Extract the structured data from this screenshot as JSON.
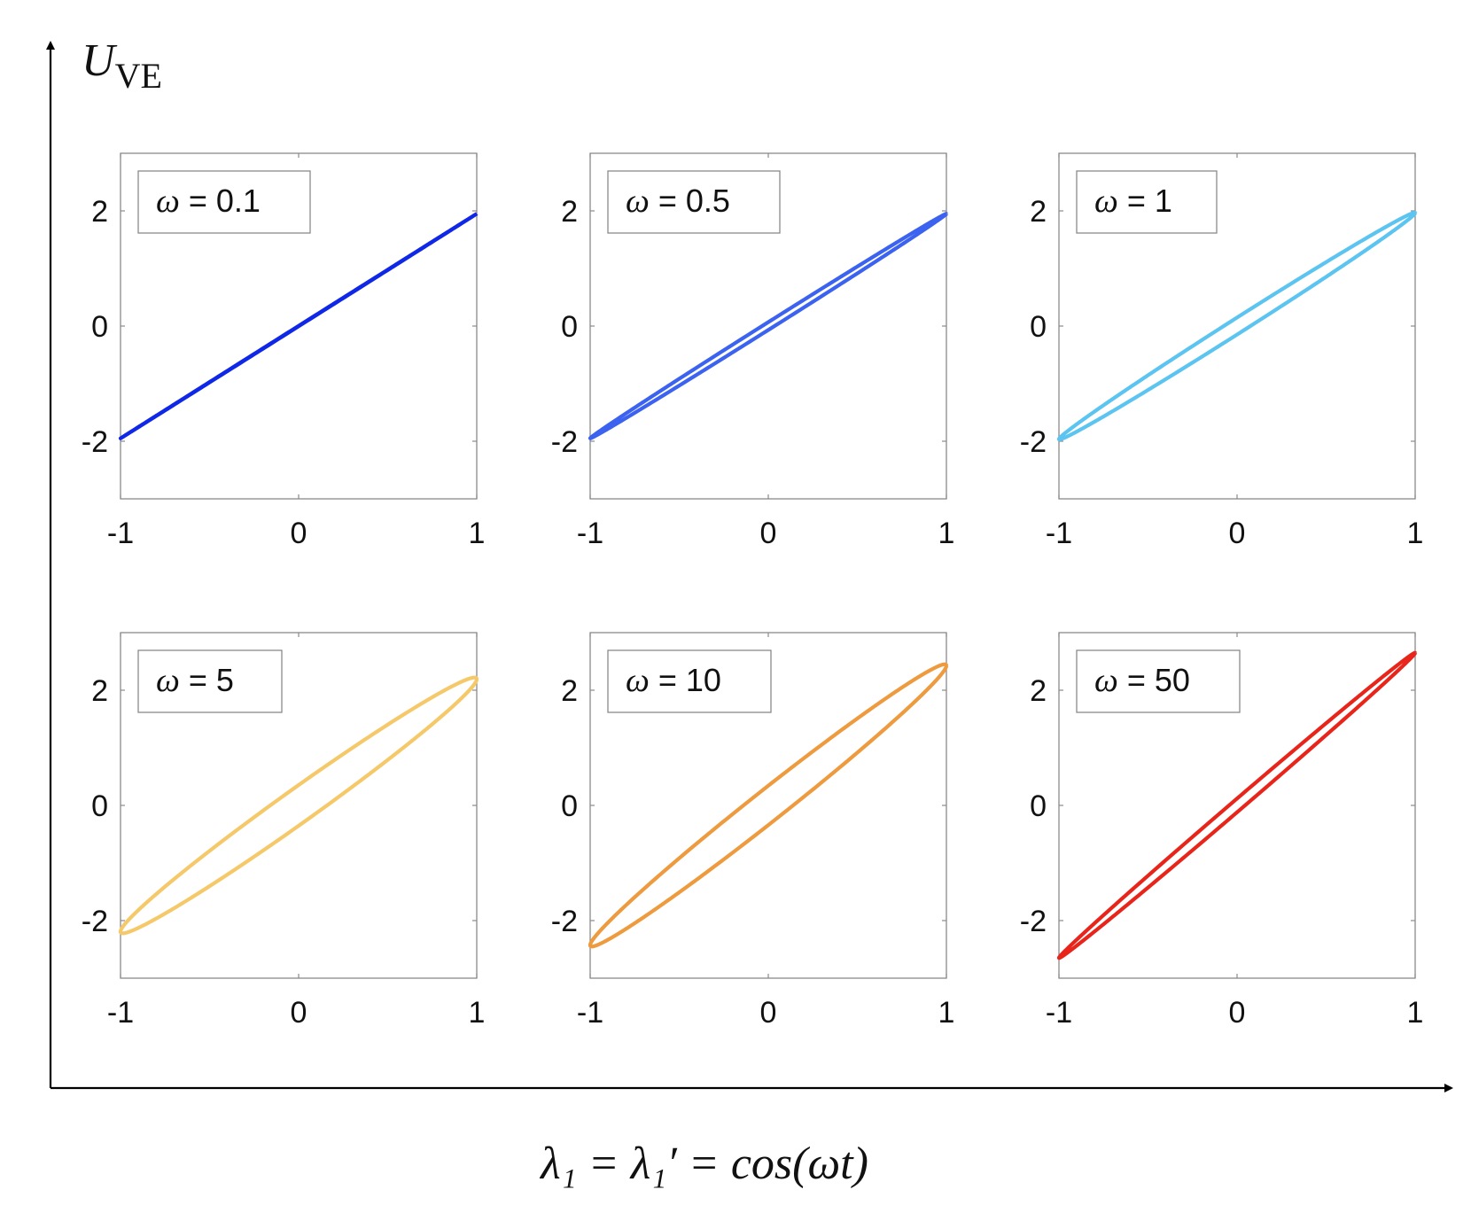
{
  "figure": {
    "y_axis_label": "U",
    "y_axis_label_sub": "VE",
    "x_axis_label": "λ₁ = λ₁′ = cos(ωt)"
  },
  "chart_data": [
    {
      "type": "line",
      "annotation": "ω = 0.1",
      "omega_symbol": "ω",
      "omega_value": "0.1",
      "color": "#0f27e6",
      "xlim": [
        -1,
        1
      ],
      "ylim": [
        -3,
        3
      ],
      "xticks": [
        -1,
        0,
        1
      ],
      "yticks": [
        -2,
        0,
        2
      ],
      "series": [
        {
          "x_amplitude": 1.0,
          "y_amplitude": 1.95,
          "phase_lag": 0.002
        }
      ]
    },
    {
      "type": "line",
      "annotation": "ω = 0.5",
      "omega_symbol": "ω",
      "omega_value": "0.5",
      "color": "#3b63f0",
      "xlim": [
        -1,
        1
      ],
      "ylim": [
        -3,
        3
      ],
      "xticks": [
        -1,
        0,
        1
      ],
      "yticks": [
        -2,
        0,
        2
      ],
      "series": [
        {
          "x_amplitude": 1.0,
          "y_amplitude": 1.95,
          "phase_lag": 0.035
        }
      ]
    },
    {
      "type": "line",
      "annotation": "ω = 1",
      "omega_symbol": "ω",
      "omega_value": "1",
      "color": "#5cc4f0",
      "xlim": [
        -1,
        1
      ],
      "ylim": [
        -3,
        3
      ],
      "xticks": [
        -1,
        0,
        1
      ],
      "yticks": [
        -2,
        0,
        2
      ],
      "series": [
        {
          "x_amplitude": 1.0,
          "y_amplitude": 1.97,
          "phase_lag": 0.075
        }
      ]
    },
    {
      "type": "line",
      "annotation": "ω = 5",
      "omega_symbol": "ω",
      "omega_value": "5",
      "color": "#f5c96a",
      "xlim": [
        -1,
        1
      ],
      "ylim": [
        -3,
        3
      ],
      "xticks": [
        -1,
        0,
        1
      ],
      "yticks": [
        -2,
        0,
        2
      ],
      "series": [
        {
          "x_amplitude": 1.0,
          "y_amplitude": 2.22,
          "phase_lag": 0.16
        }
      ]
    },
    {
      "type": "line",
      "annotation": "ω = 10",
      "omega_symbol": "ω",
      "omega_value": "10",
      "color": "#ee9a3e",
      "xlim": [
        -1,
        1
      ],
      "ylim": [
        -3,
        3
      ],
      "xticks": [
        -1,
        0,
        1
      ],
      "yticks": [
        -2,
        0,
        2
      ],
      "series": [
        {
          "x_amplitude": 1.0,
          "y_amplitude": 2.45,
          "phase_lag": 0.14
        }
      ]
    },
    {
      "type": "line",
      "annotation": "ω = 50",
      "omega_symbol": "ω",
      "omega_value": "50",
      "color": "#e8251b",
      "xlim": [
        -1,
        1
      ],
      "ylim": [
        -3,
        3
      ],
      "xticks": [
        -1,
        0,
        1
      ],
      "yticks": [
        -2,
        0,
        2
      ],
      "series": [
        {
          "x_amplitude": 1.0,
          "y_amplitude": 2.65,
          "phase_lag": 0.045
        }
      ]
    }
  ]
}
